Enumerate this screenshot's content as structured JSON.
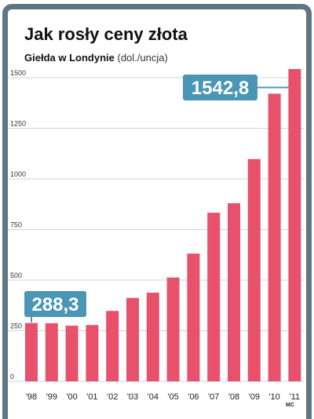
{
  "title": "Jak rosły ceny złota",
  "subtitle": {
    "main": "Giełda w Londynie",
    "unit": "(dol./uncja)"
  },
  "credit": "MC",
  "chart_data": {
    "type": "bar",
    "title": "Jak rosły ceny złota",
    "subtitle": "Giełda w Londynie (dol./uncja)",
    "categories": [
      "'98",
      "'99",
      "'00",
      "'01",
      "'02",
      "'03",
      "'04",
      "'05",
      "'06",
      "'07",
      "'08",
      "'09",
      "'10",
      "'11"
    ],
    "values": [
      288.3,
      287,
      275,
      278,
      348,
      412,
      438,
      513,
      631,
      833,
      880,
      1098,
      1421,
      1542.8
    ],
    "yticks": [
      0,
      250,
      500,
      750,
      1000,
      1250,
      1500
    ],
    "ytick_labels": [
      "0",
      "250",
      "500",
      "750",
      "1000",
      "1250",
      "1500"
    ],
    "ylim": [
      0,
      1550
    ],
    "grid": true,
    "bar_color": "#e8516b",
    "annotations": [
      {
        "category": "'98",
        "value": 288.3,
        "label": "288,3",
        "color": "#4a96b4"
      },
      {
        "category": "'11",
        "value": 1542.8,
        "label": "1542,8",
        "color": "#4a96b4"
      }
    ]
  }
}
